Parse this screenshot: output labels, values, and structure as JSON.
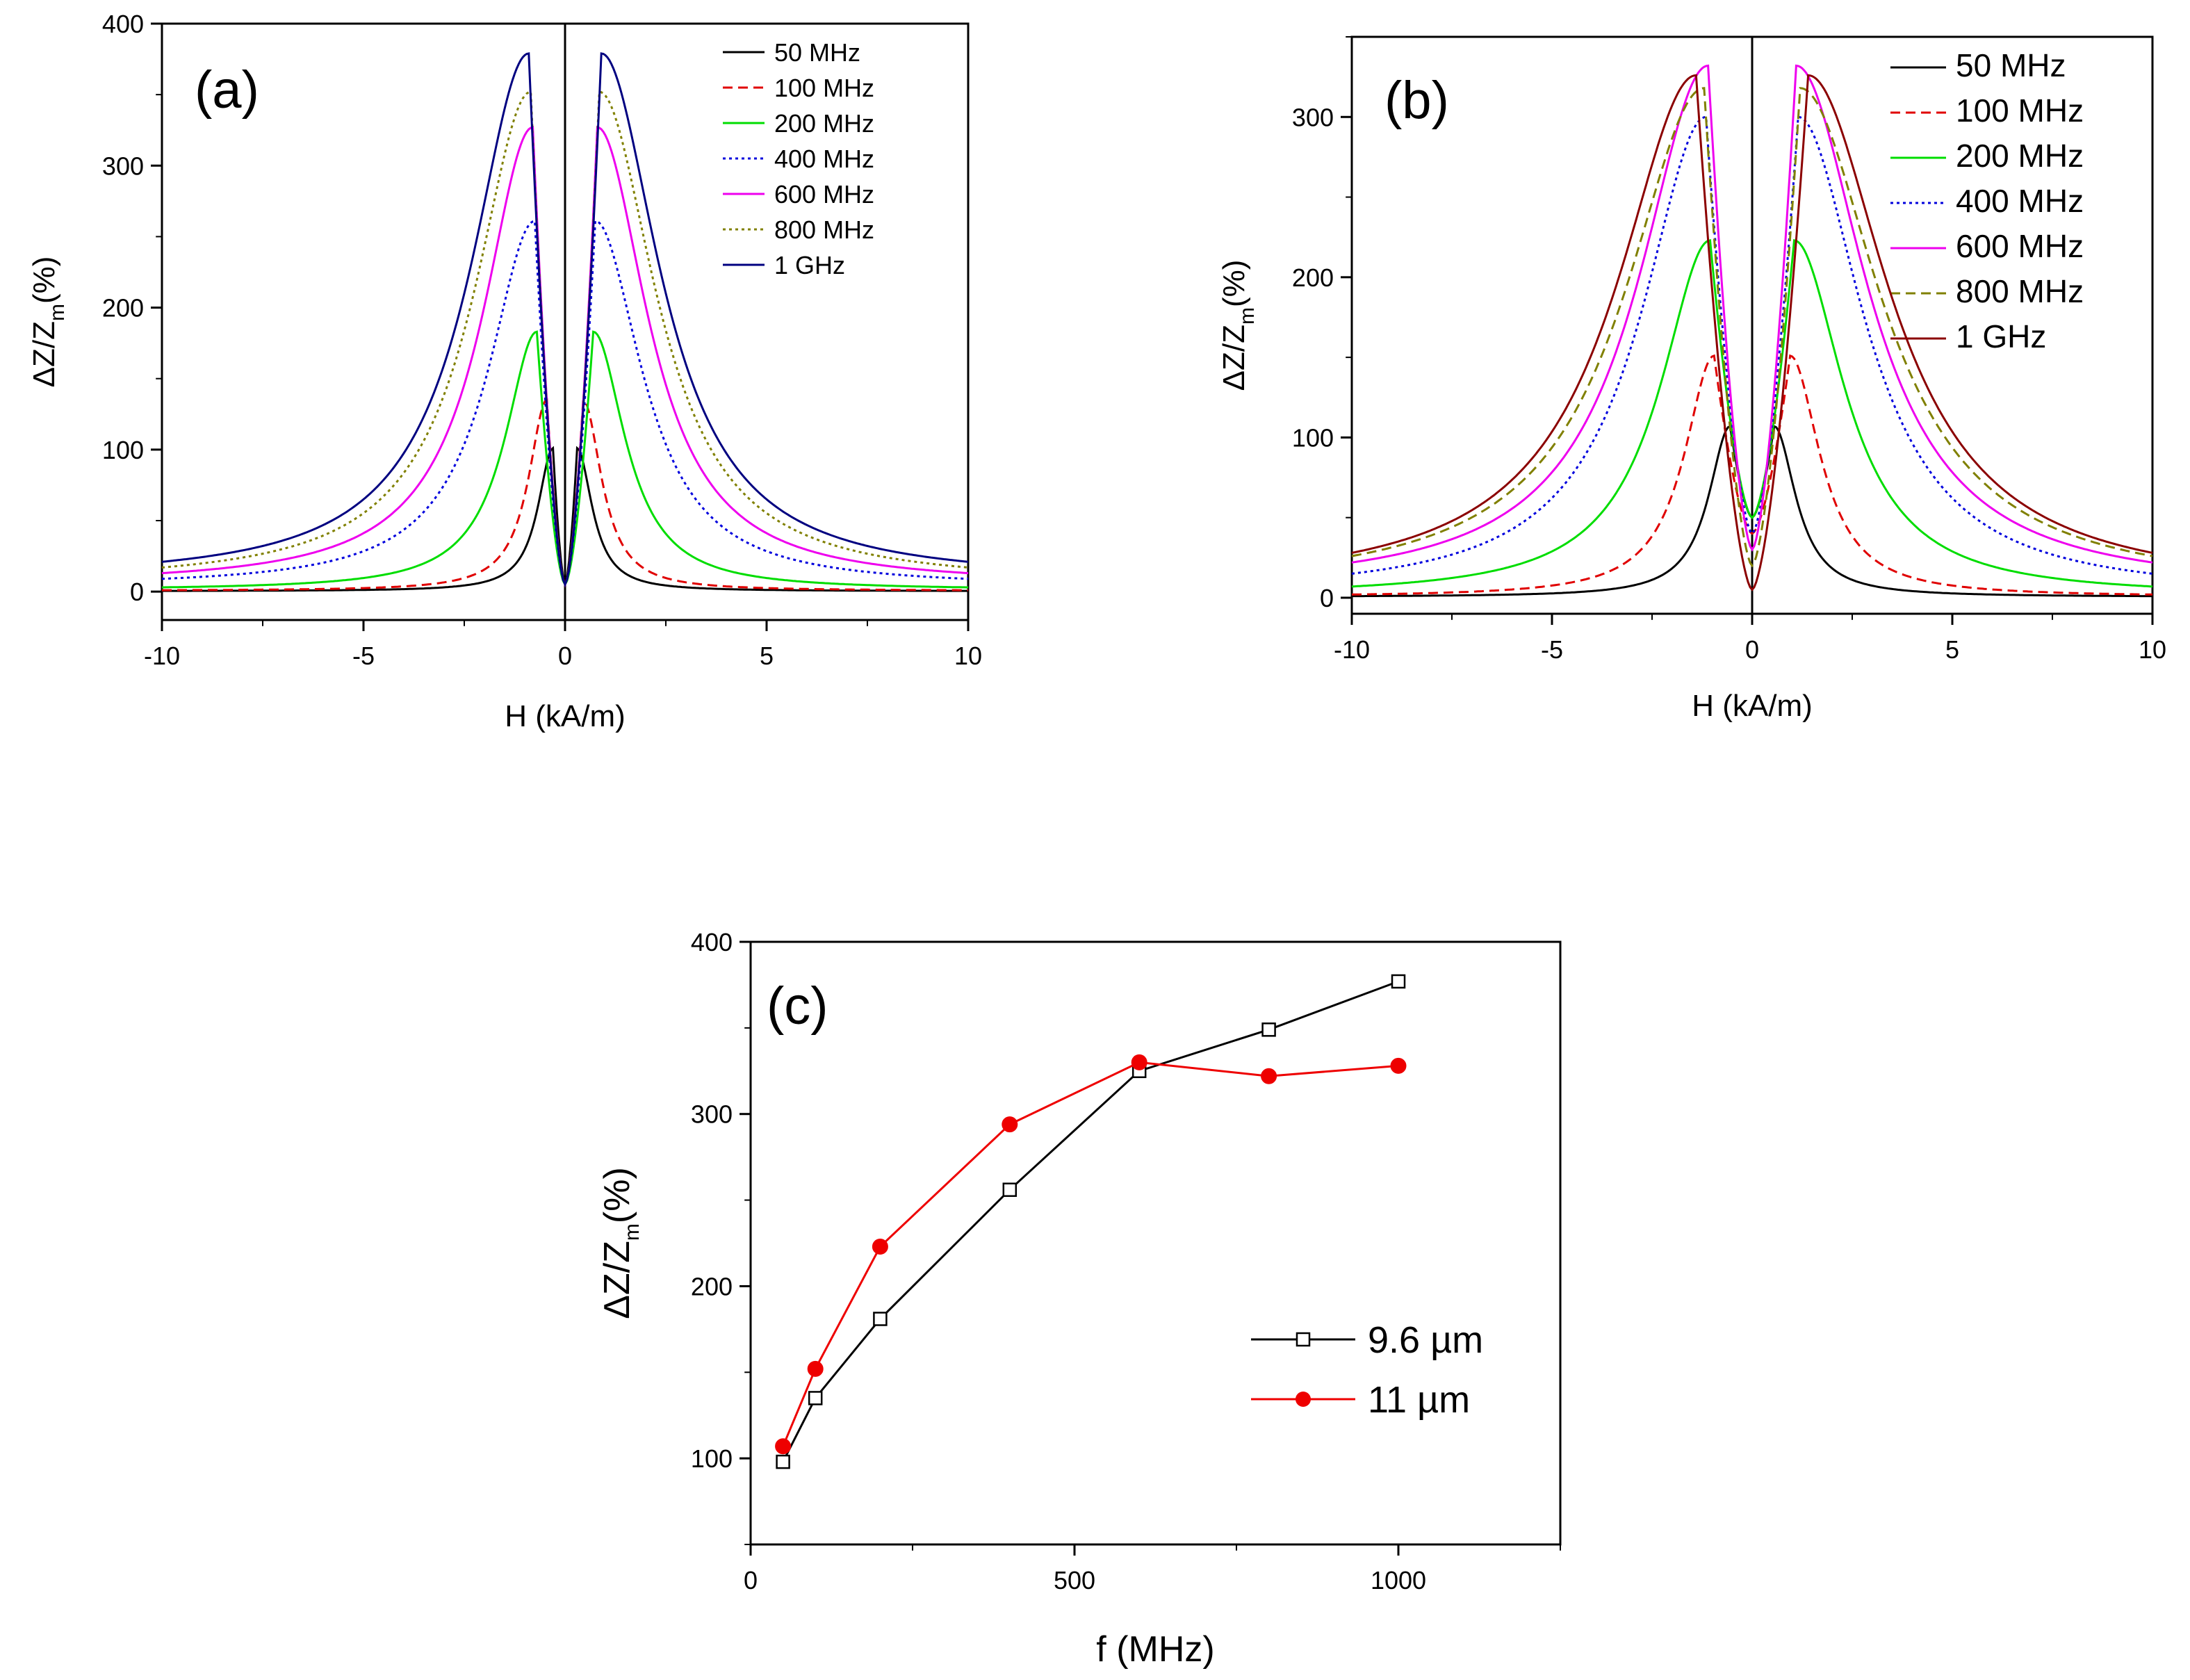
{
  "chart_data": [
    {
      "id": "a",
      "type": "line",
      "panel_label": "(a)",
      "xlabel": "H (kA/m)",
      "ylabel_main": "ΔZ/Z",
      "ylabel_sub": "m",
      "ylabel_tail": "(%)",
      "xlim": [
        -10,
        10
      ],
      "ylim": [
        -20,
        400
      ],
      "xticks": [
        "-10",
        "-5",
        "0",
        "5",
        "10"
      ],
      "xtick_values": [
        -10,
        -5,
        0,
        5,
        10
      ],
      "yticks": [
        "0",
        "100",
        "200",
        "300",
        "400"
      ],
      "ytick_values": [
        0,
        100,
        200,
        300,
        400
      ],
      "legend_position": "top-right",
      "series": [
        {
          "name": "50 MHz",
          "color": "#000000",
          "dash": "solid",
          "peak": 101,
          "peak_field": 0.3,
          "width": 0.45,
          "tail_at_10": 0.5,
          "zero_value": 5
        },
        {
          "name": "100 MHz",
          "color": "#e00000",
          "dash": "dashed",
          "peak": 135,
          "peak_field": 0.45,
          "width": 0.55,
          "tail_at_10": 1,
          "zero_value": 5
        },
        {
          "name": "200 MHz",
          "color": "#00dd00",
          "dash": "solid",
          "peak": 183,
          "peak_field": 0.7,
          "width": 0.95,
          "tail_at_10": 3,
          "zero_value": 5
        },
        {
          "name": "400 MHz",
          "color": "#0000dd",
          "dash": "dotted",
          "peak": 261,
          "peak_field": 0.75,
          "width": 1.4,
          "tail_at_10": 9,
          "zero_value": 5
        },
        {
          "name": "600 MHz",
          "color": "#ee00ee",
          "dash": "solid",
          "peak": 327,
          "peak_field": 0.8,
          "width": 1.5,
          "tail_at_10": 13,
          "zero_value": 5
        },
        {
          "name": "800 MHz",
          "color": "#808000",
          "dash": "dotted",
          "peak": 352,
          "peak_field": 0.85,
          "width": 1.7,
          "tail_at_10": 17,
          "zero_value": 5
        },
        {
          "name": "1 GHz",
          "color": "#000080",
          "dash": "solid",
          "peak": 379,
          "peak_field": 0.9,
          "width": 1.75,
          "tail_at_10": 21,
          "zero_value": 5
        }
      ]
    },
    {
      "id": "b",
      "type": "line",
      "panel_label": "(b)",
      "xlabel": "H (kA/m)",
      "ylabel_main": "ΔZ/Z",
      "ylabel_sub": "m",
      "ylabel_tail": "(%)",
      "xlim": [
        -10,
        10
      ],
      "ylim": [
        -10,
        350
      ],
      "xticks": [
        "-10",
        "-5",
        "0",
        "5",
        "10"
      ],
      "xtick_values": [
        -10,
        -5,
        0,
        5,
        10
      ],
      "yticks": [
        "0",
        "100",
        "200",
        "300"
      ],
      "ytick_values": [
        0,
        100,
        200,
        300
      ],
      "legend_position": "top-right",
      "series": [
        {
          "name": "50 MHz",
          "color": "#000000",
          "dash": "solid",
          "peak": 107,
          "peak_field": 0.55,
          "width": 0.65,
          "tail_at_10": 1,
          "zero_value": 50
        },
        {
          "name": "100 MHz",
          "color": "#e00000",
          "dash": "dashed",
          "peak": 151,
          "peak_field": 0.95,
          "width": 0.9,
          "tail_at_10": 2,
          "zero_value": 40
        },
        {
          "name": "200 MHz",
          "color": "#00dd00",
          "dash": "solid",
          "peak": 223,
          "peak_field": 1.05,
          "width": 1.5,
          "tail_at_10": 7,
          "zero_value": 50
        },
        {
          "name": "400 MHz",
          "color": "#0000dd",
          "dash": "dotted",
          "peak": 300,
          "peak_field": 1.15,
          "width": 1.95,
          "tail_at_10": 15,
          "zero_value": 40
        },
        {
          "name": "600 MHz",
          "color": "#ee00ee",
          "dash": "solid",
          "peak": 332,
          "peak_field": 1.1,
          "width": 2.1,
          "tail_at_10": 22,
          "zero_value": 30
        },
        {
          "name": "800 MHz",
          "color": "#808000",
          "dash": "dashed",
          "peak": 318,
          "peak_field": 1.2,
          "width": 2.4,
          "tail_at_10": 26,
          "zero_value": 20
        },
        {
          "name": "1 GHz",
          "color": "#8b0000",
          "dash": "solid",
          "peak": 326,
          "peak_field": 1.4,
          "width": 2.4,
          "tail_at_10": 28,
          "zero_value": 5
        }
      ]
    },
    {
      "id": "c",
      "type": "line",
      "panel_label": "(c)",
      "xlabel": "f (MHz)",
      "ylabel_main": "ΔZ/Z",
      "ylabel_sub": "m",
      "ylabel_tail": "(%)",
      "xlim": [
        0,
        1250
      ],
      "ylim": [
        50,
        400
      ],
      "xticks": [
        "0",
        "500",
        "1000"
      ],
      "xtick_values": [
        0,
        500,
        1000
      ],
      "yticks": [
        "100",
        "200",
        "300",
        "400"
      ],
      "ytick_values": [
        100,
        200,
        300,
        400
      ],
      "legend_position": "middle-right",
      "series": [
        {
          "name": "9.6 µm",
          "color": "#000000",
          "marker": "open-square",
          "x": [
            50,
            100,
            200,
            400,
            600,
            800,
            1000
          ],
          "y": [
            98,
            135,
            181,
            256,
            325,
            349,
            377
          ]
        },
        {
          "name": "11 µm",
          "color": "#ee0000",
          "marker": "filled-circle",
          "x": [
            50,
            100,
            200,
            400,
            600,
            800,
            1000
          ],
          "y": [
            107,
            152,
            223,
            294,
            330,
            322,
            328
          ]
        }
      ]
    }
  ]
}
